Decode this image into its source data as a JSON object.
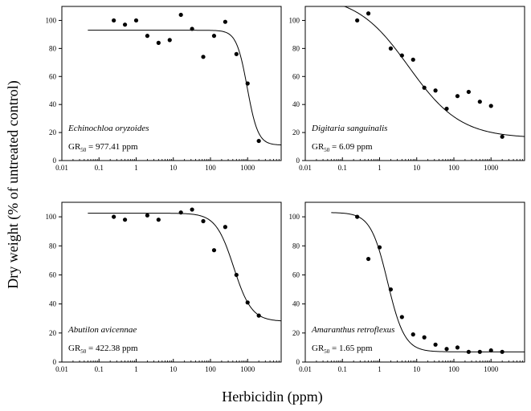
{
  "figure": {
    "ylabel": "Dry weight (% of untreated control)",
    "xlabel": "Herbicidin (ppm)"
  },
  "chart_data": [
    {
      "type": "scatter",
      "species": "Echinochloa oryzoides",
      "gr50_prefix": "GR",
      "gr50_sub": "50",
      "gr50_suffix": " = 977.41 ppm",
      "gr50_value": 977.41,
      "fit": {
        "top": 93,
        "bottom": 11,
        "hill": 3.0,
        "ec50": 977.41
      },
      "xscale": "log",
      "xlim": [
        0.01,
        8000
      ],
      "ylim": [
        0,
        110
      ],
      "xticks": [
        "0.01",
        "0.1",
        "1",
        "10",
        "100",
        "1000"
      ],
      "yticks": [
        "0",
        "20",
        "40",
        "60",
        "80",
        "100"
      ],
      "x": [
        0.25,
        0.5,
        1,
        2,
        4,
        8,
        16,
        32,
        64,
        125,
        250,
        500,
        1000,
        2000
      ],
      "y": [
        100,
        97,
        100,
        89,
        84,
        86,
        104,
        94,
        74,
        89,
        99,
        76,
        55,
        14
      ]
    },
    {
      "type": "scatter",
      "species": "Digitaria sanguinalis",
      "gr50_prefix": "GR",
      "gr50_sub": "50",
      "gr50_suffix": " = 6.09 ppm",
      "gr50_value": 6.09,
      "fit": {
        "top": 118,
        "bottom": 16,
        "hill": 0.62,
        "ec50": 6.09
      },
      "xscale": "log",
      "xlim": [
        0.01,
        8000
      ],
      "ylim": [
        0,
        110
      ],
      "xticks": [
        "0.01",
        "0.1",
        "1",
        "10",
        "100",
        "1000"
      ],
      "yticks": [
        "0",
        "20",
        "40",
        "60",
        "80",
        "100"
      ],
      "x": [
        0.25,
        0.5,
        2,
        4,
        8,
        16,
        32,
        64,
        125,
        250,
        500,
        1000,
        2000
      ],
      "y": [
        100,
        105,
        80,
        75,
        72,
        52,
        50,
        37,
        46,
        49,
        42,
        39,
        17
      ]
    },
    {
      "type": "scatter",
      "species": "Abutilon avicennae",
      "gr50_prefix": "GR",
      "gr50_sub": "50",
      "gr50_suffix": " = 422.38 ppm",
      "gr50_value": 422.38,
      "fit": {
        "top": 102.5,
        "bottom": 28,
        "hill": 1.8,
        "ec50": 422.38
      },
      "xscale": "log",
      "xlim": [
        0.01,
        8000
      ],
      "ylim": [
        0,
        110
      ],
      "xticks": [
        "0.01",
        "0.1",
        "1",
        "10",
        "100",
        "1000"
      ],
      "yticks": [
        "0",
        "20",
        "40",
        "60",
        "80",
        "100"
      ],
      "x": [
        0.25,
        0.5,
        2,
        4,
        16,
        32,
        64,
        125,
        250,
        500,
        1000,
        2000
      ],
      "y": [
        100,
        98,
        101,
        98,
        103,
        105,
        97,
        77,
        93,
        60,
        41,
        32
      ]
    },
    {
      "type": "scatter",
      "species": "Amaranthus retroflexus",
      "gr50_prefix": "GR",
      "gr50_sub": "50",
      "gr50_suffix": " = 1.65 ppm",
      "gr50_value": 1.65,
      "fit": {
        "top": 103,
        "bottom": 7,
        "hill": 1.9,
        "ec50": 1.65
      },
      "xscale": "log",
      "xlim": [
        0.01,
        8000
      ],
      "ylim": [
        0,
        110
      ],
      "xticks": [
        "0.01",
        "0.1",
        "1",
        "10",
        "100",
        "1000"
      ],
      "yticks": [
        "0",
        "20",
        "40",
        "60",
        "80",
        "100"
      ],
      "x": [
        0.25,
        0.5,
        1,
        2,
        4,
        8,
        16,
        32,
        64,
        125,
        250,
        500,
        1000,
        2000
      ],
      "y": [
        100,
        71,
        79,
        50,
        31,
        19,
        17,
        12,
        9,
        10,
        7,
        7,
        8,
        7
      ]
    }
  ]
}
